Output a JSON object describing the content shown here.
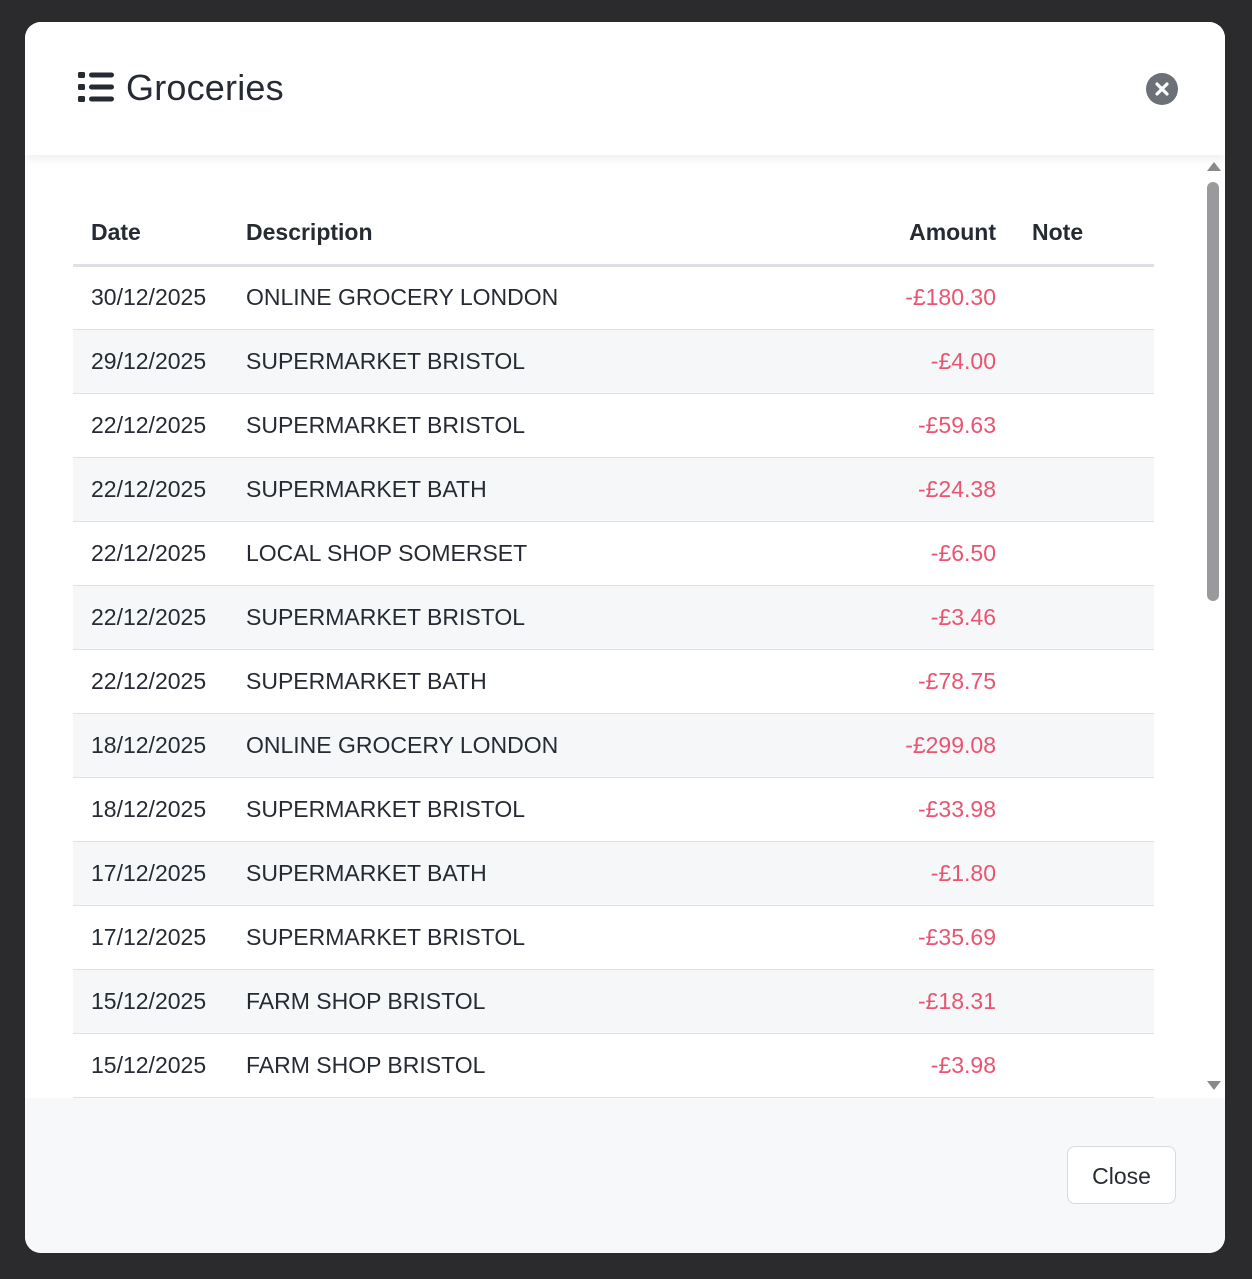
{
  "modal": {
    "title": "Groceries",
    "header_icon": "list-icon",
    "close_icon": "close-circle-icon"
  },
  "table": {
    "headers": {
      "date": "Date",
      "description": "Description",
      "amount": "Amount",
      "note": "Note"
    },
    "rows": [
      {
        "date": "30/12/2025",
        "description": "ONLINE GROCERY LONDON",
        "amount": "-£180.30",
        "note": ""
      },
      {
        "date": "29/12/2025",
        "description": "SUPERMARKET BRISTOL",
        "amount": "-£4.00",
        "note": ""
      },
      {
        "date": "22/12/2025",
        "description": "SUPERMARKET BRISTOL",
        "amount": "-£59.63",
        "note": ""
      },
      {
        "date": "22/12/2025",
        "description": "SUPERMARKET BATH",
        "amount": "-£24.38",
        "note": ""
      },
      {
        "date": "22/12/2025",
        "description": "LOCAL SHOP SOMERSET",
        "amount": "-£6.50",
        "note": ""
      },
      {
        "date": "22/12/2025",
        "description": "SUPERMARKET BRISTOL",
        "amount": "-£3.46",
        "note": ""
      },
      {
        "date": "22/12/2025",
        "description": "SUPERMARKET BATH",
        "amount": "-£78.75",
        "note": ""
      },
      {
        "date": "18/12/2025",
        "description": "ONLINE GROCERY LONDON",
        "amount": "-£299.08",
        "note": ""
      },
      {
        "date": "18/12/2025",
        "description": "SUPERMARKET BRISTOL",
        "amount": "-£33.98",
        "note": ""
      },
      {
        "date": "17/12/2025",
        "description": "SUPERMARKET BATH",
        "amount": "-£1.80",
        "note": ""
      },
      {
        "date": "17/12/2025",
        "description": "SUPERMARKET BRISTOL",
        "amount": "-£35.69",
        "note": ""
      },
      {
        "date": "15/12/2025",
        "description": "FARM SHOP BRISTOL",
        "amount": "-£18.31",
        "note": ""
      },
      {
        "date": "15/12/2025",
        "description": "FARM SHOP BRISTOL",
        "amount": "-£3.98",
        "note": ""
      }
    ]
  },
  "footer": {
    "close_label": "Close"
  },
  "colors": {
    "negative_amount": "#ea5470",
    "backdrop": "#2b2b2d",
    "stripe": "#f6f7f9"
  }
}
